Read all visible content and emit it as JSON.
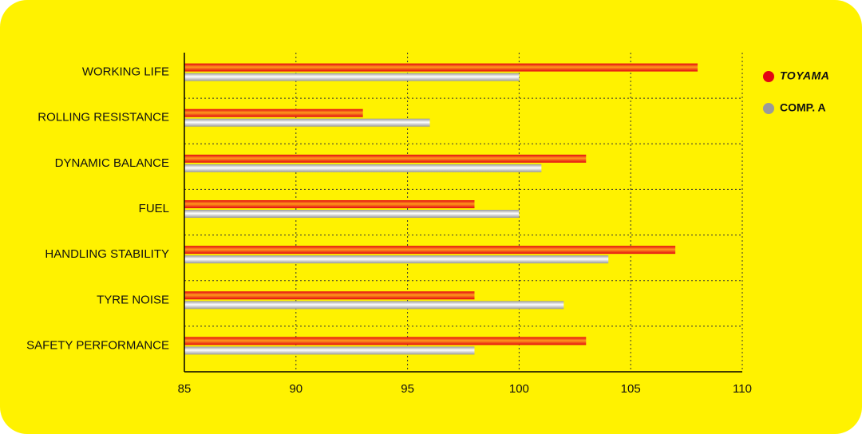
{
  "chart_data": {
    "type": "bar",
    "orientation": "horizontal",
    "categories": [
      "WORKING LIFE",
      "ROLLING RESISTANCE",
      "DYNAMIC BALANCE",
      "FUEL",
      "HANDLING STABILITY",
      "TYRE NOISE",
      "SAFETY PERFORMANCE"
    ],
    "series": [
      {
        "name": "TOYAMA",
        "color": "#e30613",
        "values": [
          108,
          93,
          103,
          98,
          107,
          98,
          103
        ]
      },
      {
        "name": "COMP. A",
        "color": "#9a9a9a",
        "values": [
          100,
          96,
          101,
          100,
          104,
          102,
          98
        ]
      }
    ],
    "xlim": [
      85,
      110
    ],
    "xticks": [
      85,
      90,
      95,
      100,
      105,
      110
    ],
    "grid": true,
    "legend": "right"
  }
}
